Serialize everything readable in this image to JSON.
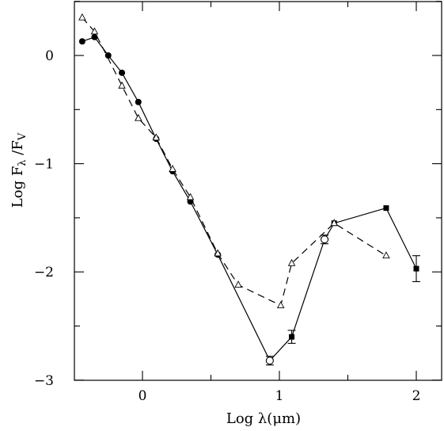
{
  "chart_data": {
    "type": "line",
    "xlabel": "Log λ(μm)",
    "ylabel": "Log F_λ /F_V",
    "xlim": [
      -0.5,
      2.2
    ],
    "ylim": [
      -3.0,
      0.5
    ],
    "xticks": [
      0,
      1,
      2
    ],
    "xtick_labels": [
      "0",
      "1",
      "2"
    ],
    "yticks": [
      0,
      -1,
      -2,
      -3
    ],
    "ytick_labels": [
      "0",
      "−1",
      "−2",
      "−3"
    ],
    "grid": false,
    "series": [
      {
        "style": "solid",
        "color": "#000000",
        "points": [
          {
            "x": -0.44,
            "y": 0.13,
            "marker": "filled-circle"
          },
          {
            "x": -0.35,
            "y": 0.17,
            "marker": "filled-circle"
          },
          {
            "x": -0.25,
            "y": 0.0,
            "marker": "filled-circle"
          },
          {
            "x": -0.15,
            "y": -0.16,
            "marker": "filled-circle"
          },
          {
            "x": -0.03,
            "y": -0.43,
            "marker": "filled-circle"
          },
          {
            "x": 0.1,
            "y": -0.77,
            "marker": "filled-circle"
          },
          {
            "x": 0.22,
            "y": -1.07,
            "marker": "filled-circle"
          },
          {
            "x": 0.35,
            "y": -1.35,
            "marker": "filled-circle"
          },
          {
            "x": 0.55,
            "y": -1.84,
            "marker": "filled-circle"
          },
          {
            "x": 0.93,
            "y": -2.82,
            "marker": "open-circle",
            "err": 0.04
          },
          {
            "x": 1.09,
            "y": -2.6,
            "marker": "filled-square",
            "err": 0.06
          },
          {
            "x": 1.33,
            "y": -1.7,
            "marker": "open-circle",
            "err": 0.04
          },
          {
            "x": 1.4,
            "y": -1.55,
            "marker": "filled-square"
          },
          {
            "x": 1.78,
            "y": -1.41,
            "marker": "filled-square"
          },
          {
            "x": 2.0,
            "y": -1.97,
            "marker": "filled-square",
            "err": 0.12
          }
        ]
      },
      {
        "style": "dashed",
        "color": "#000000",
        "points": [
          {
            "x": -0.44,
            "y": 0.35,
            "marker": "open-triangle"
          },
          {
            "x": -0.35,
            "y": 0.22,
            "marker": "open-triangle"
          },
          {
            "x": -0.15,
            "y": -0.28,
            "marker": "open-triangle"
          },
          {
            "x": -0.03,
            "y": -0.58,
            "marker": "open-triangle"
          },
          {
            "x": 0.1,
            "y": -0.76,
            "marker": "open-triangle"
          },
          {
            "x": 0.22,
            "y": -1.05,
            "marker": "open-triangle"
          },
          {
            "x": 0.35,
            "y": -1.31,
            "marker": "open-triangle"
          },
          {
            "x": 0.55,
            "y": -1.83,
            "marker": "open-triangle"
          },
          {
            "x": 0.7,
            "y": -2.12,
            "marker": "open-triangle"
          },
          {
            "x": 1.01,
            "y": -2.31,
            "marker": "open-triangle"
          },
          {
            "x": 1.09,
            "y": -1.92,
            "marker": "open-triangle"
          },
          {
            "x": 1.4,
            "y": -1.55,
            "marker": "open-triangle"
          },
          {
            "x": 1.78,
            "y": -1.85,
            "marker": "open-triangle"
          }
        ]
      }
    ]
  }
}
